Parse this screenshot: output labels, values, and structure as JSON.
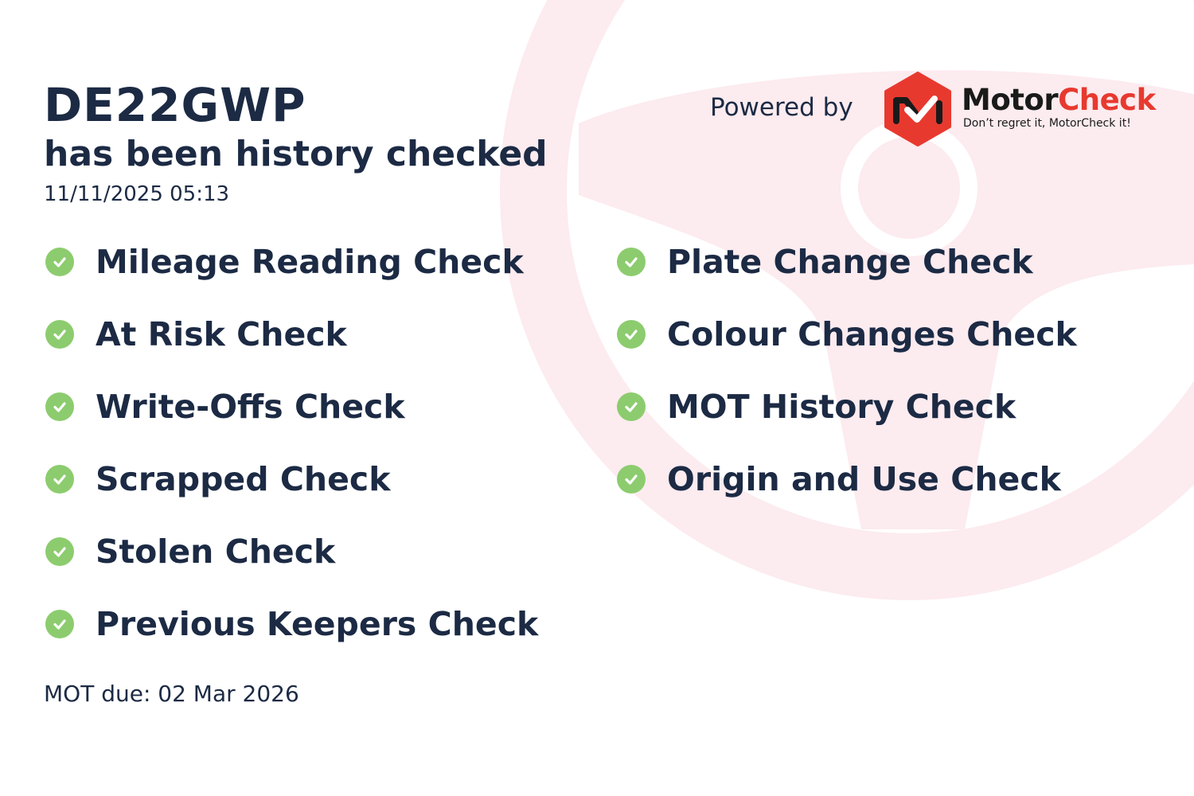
{
  "header": {
    "registration": "DE22GWP",
    "subtitle": "has been history checked",
    "timestamp": "11/11/2025 05:13"
  },
  "branding": {
    "powered_by": "Powered by",
    "brand_part1": "Motor",
    "brand_part2": "Check",
    "tagline": "Don’t regret it, MotorCheck it!",
    "brand_red": "#e8392f",
    "brand_dark": "#1a1a1a"
  },
  "checks_left": [
    {
      "label": "Mileage Reading Check",
      "status": "passed",
      "icon": "check-circle-icon"
    },
    {
      "label": "At Risk Check",
      "status": "passed",
      "icon": "check-circle-icon"
    },
    {
      "label": "Write-Offs Check",
      "status": "passed",
      "icon": "check-circle-icon"
    },
    {
      "label": "Scrapped Check",
      "status": "passed",
      "icon": "check-circle-icon"
    },
    {
      "label": "Stolen Check",
      "status": "passed",
      "icon": "check-circle-icon"
    },
    {
      "label": "Previous Keepers Check",
      "status": "passed",
      "icon": "check-circle-icon"
    }
  ],
  "checks_right": [
    {
      "label": "Plate Change Check",
      "status": "passed",
      "icon": "check-circle-icon"
    },
    {
      "label": "Colour Changes Check",
      "status": "passed",
      "icon": "check-circle-icon"
    },
    {
      "label": "MOT History Check",
      "status": "passed",
      "icon": "check-circle-icon"
    },
    {
      "label": "Origin and Use Check",
      "status": "passed",
      "icon": "check-circle-icon"
    }
  ],
  "footer": {
    "mot_due": "MOT due: 02 Mar 2026"
  },
  "colors": {
    "text": "#1c2a44",
    "check_green": "#8ccc6e",
    "watermark": "#fcebef"
  }
}
